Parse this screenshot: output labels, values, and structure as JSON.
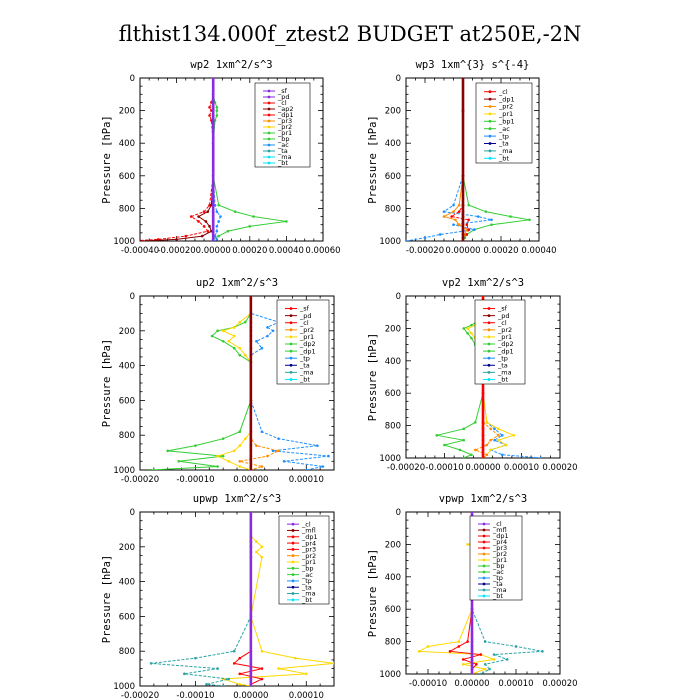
{
  "title": "flthist134.000f_ztest2  BUDGET at250E,-2N",
  "colors": {
    "purple": "#8a2be2",
    "darkred": "#8b0000",
    "red": "#ff0000",
    "orange": "#ff8c00",
    "yellow": "#ffd700",
    "green": "#32cd32",
    "blue": "#1e90ff",
    "navy": "#00008b",
    "teal": "#2aa3a3",
    "cyan": "#00e5ff",
    "black": "#000000"
  },
  "chart_data": [
    {
      "type": "line",
      "title": "wp2   1xm^2/s^3",
      "ylabel": "Pressure [hPa]",
      "xlim": [
        -0.0004,
        0.0006
      ],
      "ylim": [
        1000,
        0
      ],
      "xticks": [
        -0.0004,
        -0.0002,
        0.0,
        0.0002,
        0.0004,
        0.0006
      ],
      "xticklabels": [
        "-0.00040",
        "-0.00020",
        "0.00000",
        "0.00020",
        "0.00040",
        "0.00060"
      ],
      "yticks": [
        0,
        200,
        400,
        600,
        800,
        1000
      ],
      "yticklabels": [
        "0",
        "200",
        "400",
        "600",
        "800",
        "1000"
      ],
      "legend": [
        "_sf",
        "_pd",
        "_cl",
        "_ap2",
        "_dp1",
        "_pr3",
        "_pr2",
        "_pr1",
        "_bp",
        "_ac",
        "_ta",
        "_ma",
        "_bt"
      ],
      "legend_colors": [
        "purple",
        "purple",
        "red",
        "darkred",
        "red",
        "orange",
        "yellow",
        "green",
        "green",
        "blue",
        "teal",
        "cyan",
        "cyan"
      ],
      "pressure": [
        0,
        100,
        150,
        180,
        200,
        230,
        260,
        400,
        600,
        780,
        820,
        850,
        880,
        910,
        940,
        970,
        990,
        1000
      ],
      "series": [
        {
          "color": "green",
          "values": [
            0,
            0,
            1e-05,
            2e-05,
            2e-05,
            2e-05,
            1e-05,
            0,
            0,
            3e-05,
            0.00012,
            0.00022,
            0.0004,
            0.0002,
            8e-05,
            3e-05,
            0,
            0
          ]
        },
        {
          "color": "red",
          "values": [
            0,
            0,
            -1e-05,
            -2e-05,
            -1e-05,
            -2e-05,
            -1e-05,
            0,
            0,
            -2e-05,
            -5e-05,
            -0.00012,
            -8e-05,
            -5e-05,
            -3e-05,
            -0.00015,
            -0.0003,
            -0.00045
          ]
        },
        {
          "color": "darkred",
          "values": [
            0,
            0,
            0,
            0,
            0,
            0,
            0,
            0,
            0,
            -1e-05,
            -3e-05,
            -8e-05,
            -4e-05,
            -2e-05,
            -1e-05,
            -6e-05,
            -0.0002,
            -0.0004
          ]
        },
        {
          "color": "blue",
          "values": [
            0,
            0,
            0,
            0,
            0,
            0,
            0,
            0,
            0,
            1e-05,
            2e-05,
            4e-05,
            3e-05,
            2e-05,
            2e-05,
            1e-05,
            2e-05,
            0
          ]
        },
        {
          "color": "purple",
          "values": [
            0,
            0,
            0,
            0,
            0,
            0,
            0,
            0,
            0,
            0,
            0,
            0,
            0,
            0,
            0,
            0,
            0,
            0
          ]
        }
      ]
    },
    {
      "type": "line",
      "title": "wp3   1xm^{3} s^{-4}",
      "ylabel": "Pressure [hPa]",
      "xlim": [
        -0.0003,
        0.0004
      ],
      "ylim": [
        1000,
        0
      ],
      "xticks": [
        -0.0002,
        0.0,
        0.0002,
        0.0004
      ],
      "xticklabels": [
        "-0.00020",
        "0.00000",
        "0.00020",
        "0.00040"
      ],
      "yticks": [
        0,
        200,
        400,
        600,
        800,
        1000
      ],
      "yticklabels": [
        "0",
        "200",
        "400",
        "600",
        "800",
        "1000"
      ],
      "legend": [
        "_cl",
        "_dp1",
        "_pr2",
        "_pr1",
        "_bp1",
        "_ac",
        "_tp",
        "_ta",
        "_ma",
        "_bt"
      ],
      "legend_colors": [
        "red",
        "darkred",
        "orange",
        "yellow",
        "green",
        "green",
        "blue",
        "navy",
        "teal",
        "cyan"
      ],
      "pressure": [
        0,
        200,
        600,
        780,
        820,
        850,
        870,
        900,
        930,
        960,
        980,
        1000
      ],
      "series": [
        {
          "color": "green",
          "values": [
            0,
            0,
            0,
            3e-05,
            0.00012,
            0.00025,
            0.00035,
            0.00015,
            6e-05,
            2e-05,
            1e-05,
            0
          ]
        },
        {
          "color": "blue",
          "values": [
            0,
            0,
            0,
            -5e-05,
            -0.0001,
            8e-05,
            0.00015,
            -5e-05,
            6e-05,
            -0.00012,
            -0.0002,
            -0.0003
          ]
        },
        {
          "color": "orange",
          "values": [
            0,
            0,
            0,
            -2e-05,
            -5e-05,
            -0.0001,
            -4e-05,
            -2e-05,
            2e-05,
            1e-05,
            0,
            0
          ]
        },
        {
          "color": "red",
          "values": [
            0,
            0,
            0,
            0,
            -2e-05,
            -6e-05,
            3e-05,
            2e-05,
            3e-05,
            2e-05,
            0,
            0
          ]
        },
        {
          "color": "darkred",
          "values": [
            0,
            0,
            0,
            0,
            0,
            0,
            0,
            0,
            0,
            0,
            0,
            0
          ]
        }
      ]
    },
    {
      "type": "line",
      "title": "up2   1xm^2/s^3",
      "ylabel": "Pressure [hPa]",
      "xlim": [
        -0.0002,
        0.00015
      ],
      "ylim": [
        1000,
        0
      ],
      "xticks": [
        -0.0002,
        -0.0001,
        0.0,
        0.0001
      ],
      "xticklabels": [
        "-0.00020",
        "-0.00010",
        "0.00000",
        "0.00010"
      ],
      "yticks": [
        0,
        200,
        400,
        600,
        800,
        1000
      ],
      "yticklabels": [
        "0",
        "200",
        "400",
        "600",
        "800",
        "1000"
      ],
      "legend": [
        "_sf",
        "_pd",
        "_cl",
        "_pr2",
        "_pr1",
        "_dp2",
        "_dp1",
        "_tp",
        "_ta",
        "_ma",
        "_bt"
      ],
      "legend_colors": [
        "red",
        "darkred",
        "red",
        "orange",
        "yellow",
        "green",
        "green",
        "blue",
        "navy",
        "teal",
        "cyan"
      ],
      "pressure": [
        0,
        100,
        150,
        180,
        200,
        230,
        260,
        300,
        340,
        380,
        600,
        780,
        820,
        860,
        890,
        920,
        950,
        980,
        1000
      ],
      "series": [
        {
          "color": "green",
          "values": [
            0,
            0,
            -1e-05,
            -3e-05,
            -6e-05,
            -7e-05,
            -5e-05,
            -3e-05,
            -2e-05,
            0,
            0,
            -2e-05,
            -5e-05,
            -0.0001,
            -0.00015,
            -5e-05,
            -0.00013,
            -6e-05,
            -0.00018
          ]
        },
        {
          "color": "blue",
          "values": [
            0,
            0,
            5e-05,
            3e-05,
            4e-05,
            3e-05,
            1e-05,
            2e-05,
            0,
            0,
            0,
            2e-05,
            5e-05,
            0.00012,
            4e-05,
            0.00014,
            6e-05,
            0.00013,
            0.0001
          ]
        },
        {
          "color": "yellow",
          "values": [
            0,
            0,
            -2e-05,
            -3e-05,
            -5e-05,
            -3e-05,
            -4e-05,
            -2e-05,
            -1e-05,
            0,
            0,
            0,
            -1e-05,
            -2e-05,
            -3e-05,
            -6e-05,
            -4e-05,
            -2e-05,
            0
          ]
        },
        {
          "color": "orange",
          "values": [
            0,
            0,
            0,
            0,
            0,
            0,
            0,
            0,
            0,
            0,
            0,
            0,
            0,
            1e-05,
            5e-05,
            3e-05,
            -2e-05,
            2e-05,
            0
          ]
        },
        {
          "color": "darkred",
          "values": [
            0,
            0,
            0,
            0,
            0,
            0,
            0,
            0,
            0,
            0,
            0,
            0,
            0,
            0,
            0,
            0,
            0,
            0,
            0
          ]
        }
      ]
    },
    {
      "type": "line",
      "title": "vp2   1xm^2/s^3",
      "ylabel": "Pressure [hPa]",
      "xlim": [
        -0.0002,
        0.0002
      ],
      "ylim": [
        1000,
        0
      ],
      "xticks": [
        -0.0002,
        -0.0001,
        0.0,
        0.0001,
        0.0002
      ],
      "xticklabels": [
        "-0.00020",
        "-0.00010",
        "0.00000",
        "0.00010",
        "0.00020"
      ],
      "yticks": [
        0,
        200,
        400,
        600,
        800,
        1000
      ],
      "yticklabels": [
        "0",
        "200",
        "400",
        "600",
        "800",
        "1000"
      ],
      "legend": [
        "_sf",
        "_pd",
        "_cl",
        "_pr2",
        "_pr1",
        "_dp2",
        "_dp1",
        "_tp",
        "_ta",
        "_ma",
        "_bt"
      ],
      "legend_colors": [
        "red",
        "darkred",
        "red",
        "orange",
        "yellow",
        "green",
        "green",
        "blue",
        "navy",
        "teal",
        "cyan"
      ],
      "pressure": [
        0,
        100,
        150,
        180,
        200,
        230,
        260,
        300,
        340,
        380,
        600,
        780,
        820,
        860,
        890,
        920,
        950,
        980,
        1000
      ],
      "series": [
        {
          "color": "green",
          "values": [
            0,
            0,
            -1e-05,
            -3e-05,
            -5e-05,
            -4e-05,
            -3e-05,
            -2e-05,
            -1e-05,
            0,
            0,
            -2e-05,
            -5e-05,
            -0.00012,
            -5e-05,
            -0.0001,
            -6e-05,
            -3e-05,
            -5e-05
          ]
        },
        {
          "color": "blue",
          "values": [
            0,
            0,
            2e-05,
            4e-05,
            2e-05,
            4e-05,
            2e-05,
            1e-05,
            0,
            0,
            0,
            1e-05,
            3e-05,
            5e-05,
            3e-05,
            6e-05,
            2e-05,
            5e-05,
            0.00015
          ]
        },
        {
          "color": "yellow",
          "values": [
            0,
            0,
            -1e-05,
            -2e-05,
            -4e-05,
            -3e-05,
            -2e-05,
            -1e-05,
            0,
            0,
            0,
            1e-05,
            4e-05,
            8e-05,
            4e-05,
            6e-05,
            2e-05,
            1e-05,
            0
          ]
        },
        {
          "color": "orange",
          "values": [
            0,
            0,
            0,
            0,
            0,
            0,
            0,
            0,
            0,
            0,
            0,
            0,
            2e-05,
            4e-05,
            2e-05,
            1e-05,
            -2e-05,
            1e-05,
            0
          ]
        },
        {
          "color": "red",
          "values": [
            0,
            0,
            0,
            0,
            0,
            0,
            0,
            0,
            0,
            0,
            0,
            0,
            0,
            0,
            0,
            0,
            0,
            0,
            0
          ]
        }
      ]
    },
    {
      "type": "line",
      "title": "upwp   1xm^2/s^3",
      "ylabel": "Pressure [hPa]",
      "xlim": [
        -0.0002,
        0.00015
      ],
      "ylim": [
        1000,
        0
      ],
      "xticks": [
        -0.0002,
        -0.0001,
        0.0,
        0.0001
      ],
      "xticklabels": [
        "-0.00020",
        "-0.00010",
        "0.00000",
        "0.00010"
      ],
      "yticks": [
        0,
        200,
        400,
        600,
        800,
        1000
      ],
      "yticklabels": [
        "0",
        "200",
        "400",
        "600",
        "800",
        "1000"
      ],
      "legend": [
        "_cl",
        "_mfl",
        "_dp1",
        "_pr4",
        "_pr3",
        "_pr2",
        "_pr1",
        "_bp",
        "_ac",
        "_tp",
        "_ta",
        "_ma",
        "_bt"
      ],
      "legend_colors": [
        "purple",
        "darkred",
        "red",
        "red",
        "red",
        "orange",
        "yellow",
        "green",
        "green",
        "blue",
        "navy",
        "teal",
        "cyan"
      ],
      "pressure": [
        0,
        140,
        170,
        200,
        230,
        260,
        600,
        800,
        840,
        870,
        900,
        930,
        960,
        990,
        1000
      ],
      "series": [
        {
          "color": "yellow",
          "values": [
            0,
            0,
            1e-05,
            2e-05,
            1e-05,
            2e-05,
            0,
            2e-05,
            8e-05,
            0.00015,
            5e-05,
            0.0001,
            -5e-05,
            -2e-05,
            0
          ]
        },
        {
          "color": "teal",
          "values": [
            0,
            0,
            0,
            0,
            0,
            0,
            0,
            -3e-05,
            -0.0001,
            -0.00018,
            -6e-05,
            -0.00012,
            -4e-05,
            -8e-05,
            -5e-05
          ]
        },
        {
          "color": "red",
          "values": [
            0,
            0,
            0,
            0,
            0,
            0,
            0,
            0,
            -2e-05,
            -3e-05,
            2e-05,
            -2e-05,
            2e-05,
            0,
            0
          ]
        },
        {
          "color": "purple",
          "values": [
            0,
            0,
            0,
            0,
            0,
            0,
            0,
            0,
            0,
            0,
            0,
            0,
            0,
            0,
            0
          ]
        }
      ]
    },
    {
      "type": "line",
      "title": "vpwp   1xm^2/s^3",
      "ylabel": "Pressure [hPa]",
      "xlim": [
        -0.00015,
        0.0002
      ],
      "ylim": [
        1000,
        0
      ],
      "xticks": [
        -0.0001,
        0.0,
        0.0001,
        0.0002
      ],
      "xticklabels": [
        "-0.00010",
        "0.00000",
        "0.00010",
        "0.00020"
      ],
      "yticks": [
        0,
        200,
        400,
        600,
        800,
        1000
      ],
      "yticklabels": [
        "0",
        "200",
        "400",
        "600",
        "800",
        "1000"
      ],
      "legend": [
        "_cl",
        "_mfl",
        "_dp1",
        "_pr4",
        "_pr3",
        "_pr2",
        "_pr1",
        "_bp",
        "_ac",
        "_tp",
        "_ta",
        "_ma",
        "_bt"
      ],
      "legend_colors": [
        "purple",
        "darkred",
        "red",
        "red",
        "red",
        "orange",
        "yellow",
        "green",
        "green",
        "blue",
        "navy",
        "teal",
        "cyan"
      ],
      "pressure": [
        0,
        180,
        200,
        220,
        600,
        800,
        830,
        860,
        880,
        910,
        940,
        970,
        1000
      ],
      "series": [
        {
          "color": "yellow",
          "values": [
            0,
            1e-05,
            -1e-05,
            1e-05,
            0,
            -3e-05,
            -0.0001,
            -0.00012,
            2e-05,
            5e-05,
            -2e-05,
            3e-05,
            0
          ]
        },
        {
          "color": "teal",
          "values": [
            0,
            0,
            0,
            0,
            0,
            3e-05,
            0.0001,
            0.00016,
            5e-05,
            8e-05,
            3e-05,
            4e-05,
            2e-05
          ]
        },
        {
          "color": "red",
          "values": [
            0,
            0,
            0,
            0,
            0,
            -1e-05,
            -3e-05,
            -5e-05,
            2e-05,
            -2e-05,
            1e-05,
            0,
            0
          ]
        },
        {
          "color": "purple",
          "values": [
            0,
            0,
            0,
            0,
            0,
            0,
            0,
            0,
            0,
            0,
            0,
            0,
            0
          ]
        }
      ]
    }
  ]
}
